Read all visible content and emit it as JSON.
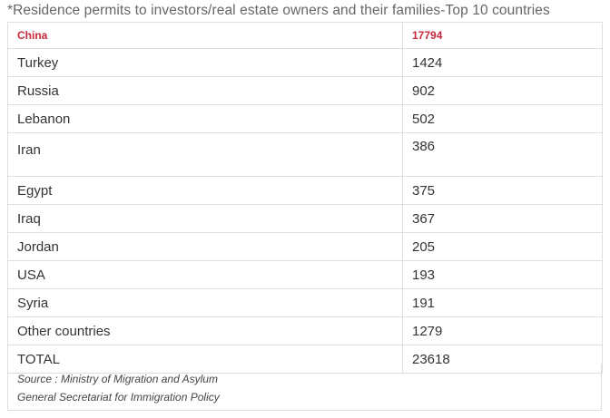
{
  "caption": "*Residence permits to investors/real estate owners and their families-Top 10 countries",
  "table": {
    "header": {
      "country": "China",
      "value": "17794"
    },
    "rows": [
      {
        "country": "Turkey",
        "value": "1424"
      },
      {
        "country": "Russia",
        "value": "902"
      },
      {
        "country": "Lebanon",
        "value": "502"
      },
      {
        "country": "Iran",
        "value": "386"
      },
      {
        "country": "Egypt",
        "value": "375"
      },
      {
        "country": "Iraq",
        "value": "367"
      },
      {
        "country": "Jordan",
        "value": "205"
      },
      {
        "country": "USA",
        "value": "193"
      },
      {
        "country": "Syria",
        "value": "191"
      },
      {
        "country": "Other countries",
        "value": "1279"
      },
      {
        "country": "TOTAL",
        "value": "23618"
      }
    ]
  },
  "source": {
    "line1": "Source : Ministry of Migration and Asylum",
    "line2": "General Secretariat for Immigration Policy"
  },
  "colors": {
    "highlight_text": "#c8283c",
    "border": "#dedede",
    "caption_text": "#666666"
  }
}
